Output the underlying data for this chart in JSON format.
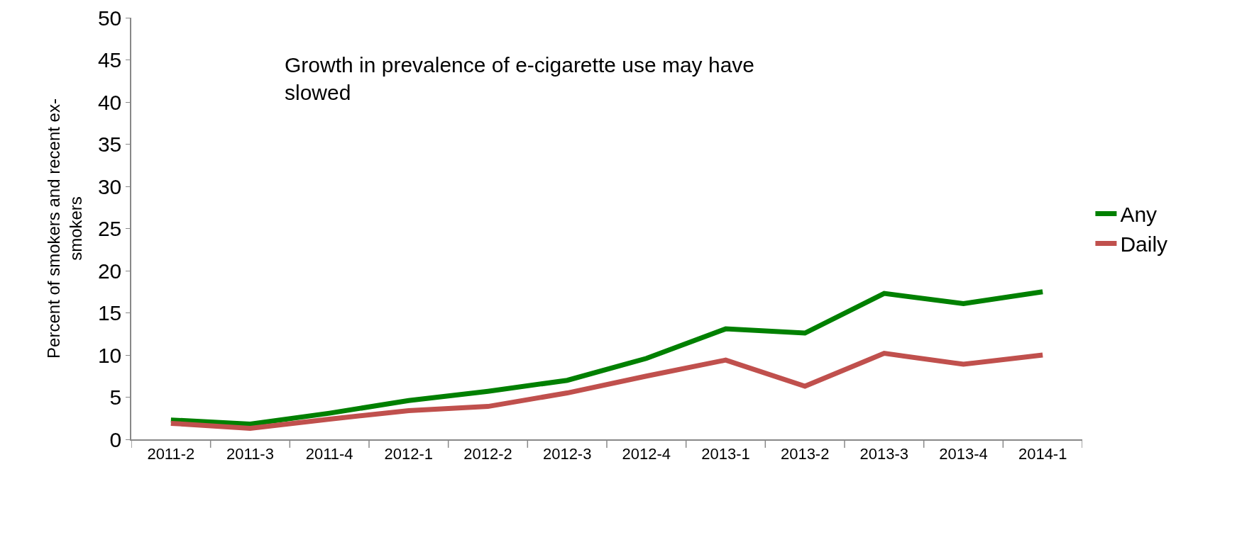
{
  "chart_data": {
    "type": "line",
    "ylabel": "Percent of smokers and recent ex-smokers",
    "annotations": [
      "Growth in prevalence of e-cigarette use may have slowed"
    ],
    "categories": [
      "2011-2",
      "2011-3",
      "2011-4",
      "2012-1",
      "2012-2",
      "2012-3",
      "2012-4",
      "2013-1",
      "2013-2",
      "2013-3",
      "2013-4",
      "2014-1"
    ],
    "series": [
      {
        "name": "Any",
        "color": "#008000",
        "values": [
          2.3,
          1.8,
          3.1,
          4.6,
          5.7,
          7.0,
          9.6,
          13.1,
          12.6,
          17.3,
          16.1,
          17.5
        ]
      },
      {
        "name": "Daily",
        "color": "#c0504d",
        "values": [
          1.9,
          1.3,
          2.4,
          3.4,
          3.9,
          5.5,
          7.5,
          9.4,
          6.3,
          10.2,
          8.9,
          10.0
        ]
      }
    ],
    "ylim": [
      0,
      50
    ],
    "yticks": [
      0,
      5,
      10,
      15,
      20,
      25,
      30,
      35,
      40,
      45,
      50
    ],
    "grid": false,
    "legend": "right",
    "marker": "none",
    "line_style": "solid"
  }
}
